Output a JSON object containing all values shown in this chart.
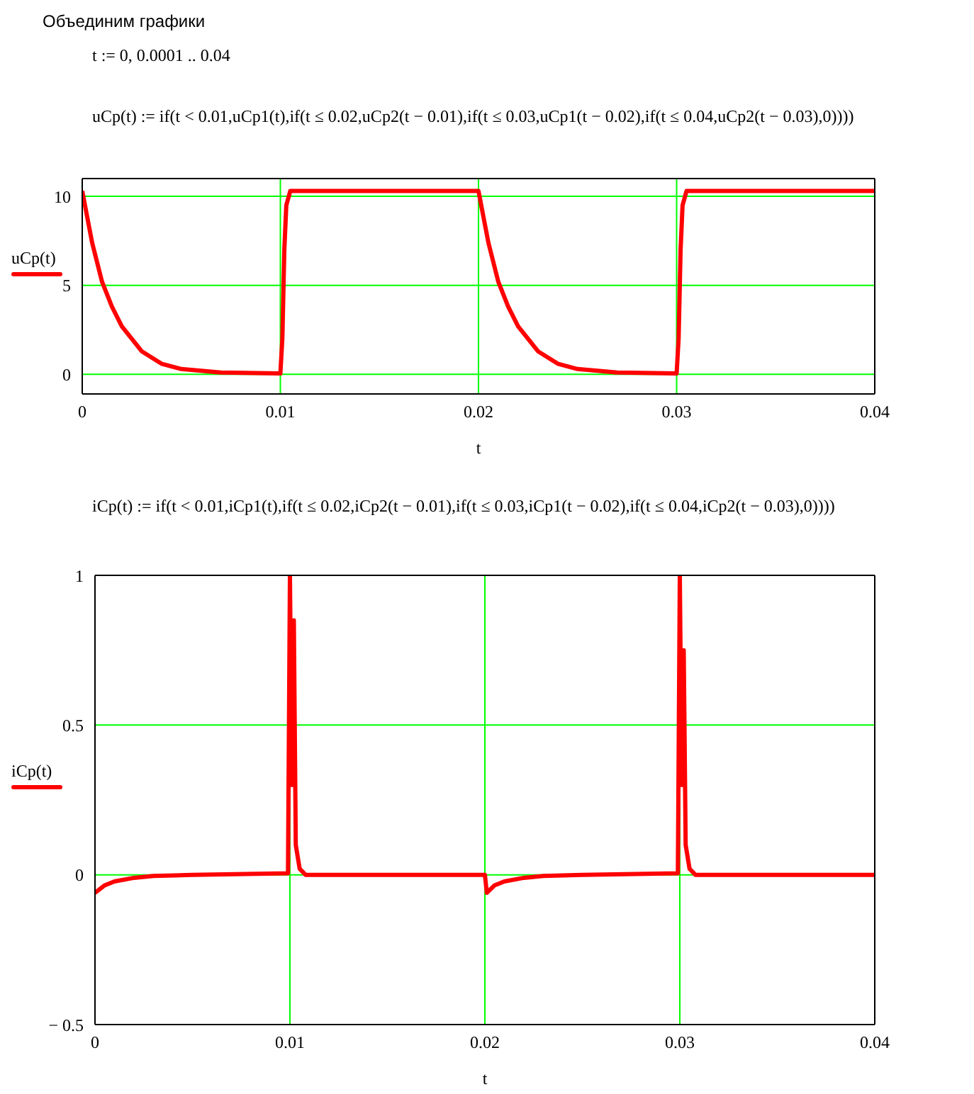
{
  "chart_data": [
    {
      "type": "line",
      "title": "Объединим графики",
      "annotations": [
        "t := 0, 0.0001 .. 0.04",
        "uCp(t) := if(t < 0.01,uCp1(t),if(t ≤ 0.02,uCp2(t − 0.01),if(t ≤ 0.03,uCp1(t − 0.02),if(t ≤ 0.04,uCp2(t − 0.03),0))))"
      ],
      "xlabel": "t",
      "xlim": [
        0,
        0.04
      ],
      "xticks": [
        0,
        0.01,
        0.02,
        0.03,
        0.04
      ],
      "ylim": [
        -1.1,
        11
      ],
      "yticks": [
        0,
        5,
        10
      ],
      "grid": true,
      "legend": "left",
      "line_style": "solid",
      "series": [
        {
          "name": "uCp(t)",
          "color": "#ff0000",
          "x": [
            0,
            0.0005,
            0.001,
            0.0015,
            0.002,
            0.003,
            0.004,
            0.005,
            0.006,
            0.007,
            0.0099,
            0.01,
            0.0101,
            0.0102,
            0.0103,
            0.0105,
            0.02,
            0.0205,
            0.021,
            0.0215,
            0.022,
            0.023,
            0.024,
            0.025,
            0.026,
            0.027,
            0.0299,
            0.03,
            0.0301,
            0.0302,
            0.0303,
            0.0305,
            0.04
          ],
          "values": [
            10.3,
            7.4,
            5.2,
            3.8,
            2.7,
            1.3,
            0.6,
            0.3,
            0.2,
            0.1,
            0.05,
            0.05,
            2,
            7,
            9.5,
            10.3,
            10.3,
            7.4,
            5.2,
            3.8,
            2.7,
            1.3,
            0.6,
            0.3,
            0.2,
            0.1,
            0.05,
            0.05,
            2,
            7,
            9.5,
            10.3,
            10.3
          ]
        }
      ]
    },
    {
      "type": "line",
      "annotations": [
        "iCp(t) := if(t < 0.01,iCp1(t),if(t ≤ 0.02,iCp2(t − 0.01),if(t ≤ 0.03,iCp1(t − 0.02),if(t ≤ 0.04,iCp2(t − 0.03),0))))"
      ],
      "xlabel": "t",
      "xlim": [
        0,
        0.04
      ],
      "xticks": [
        0,
        0.01,
        0.02,
        0.03,
        0.04
      ],
      "ylim": [
        -0.5,
        1
      ],
      "yticks": [
        {
          "value": -0.5,
          "label": "− 0.5"
        },
        0,
        0.5,
        1
      ],
      "grid": true,
      "legend": "left",
      "line_style": "solid",
      "series": [
        {
          "name": "iCp(t)",
          "color": "#ff0000",
          "x": [
            0,
            0.0005,
            0.001,
            0.002,
            0.003,
            0.005,
            0.0099,
            0.01,
            0.0101,
            0.0102,
            0.0103,
            0.0105,
            0.0108,
            0.02,
            0.0201,
            0.0205,
            0.021,
            0.022,
            0.023,
            0.025,
            0.0299,
            0.03,
            0.0301,
            0.0302,
            0.0303,
            0.0305,
            0.0308,
            0.04
          ],
          "values": [
            -0.06,
            -0.035,
            -0.022,
            -0.01,
            -0.004,
            0,
            0.005,
            1,
            0.3,
            0.85,
            0.1,
            0.02,
            0,
            0,
            -0.06,
            -0.035,
            -0.022,
            -0.01,
            -0.004,
            0,
            0.005,
            1,
            0.3,
            0.75,
            0.1,
            0.02,
            0,
            0
          ]
        }
      ]
    }
  ]
}
